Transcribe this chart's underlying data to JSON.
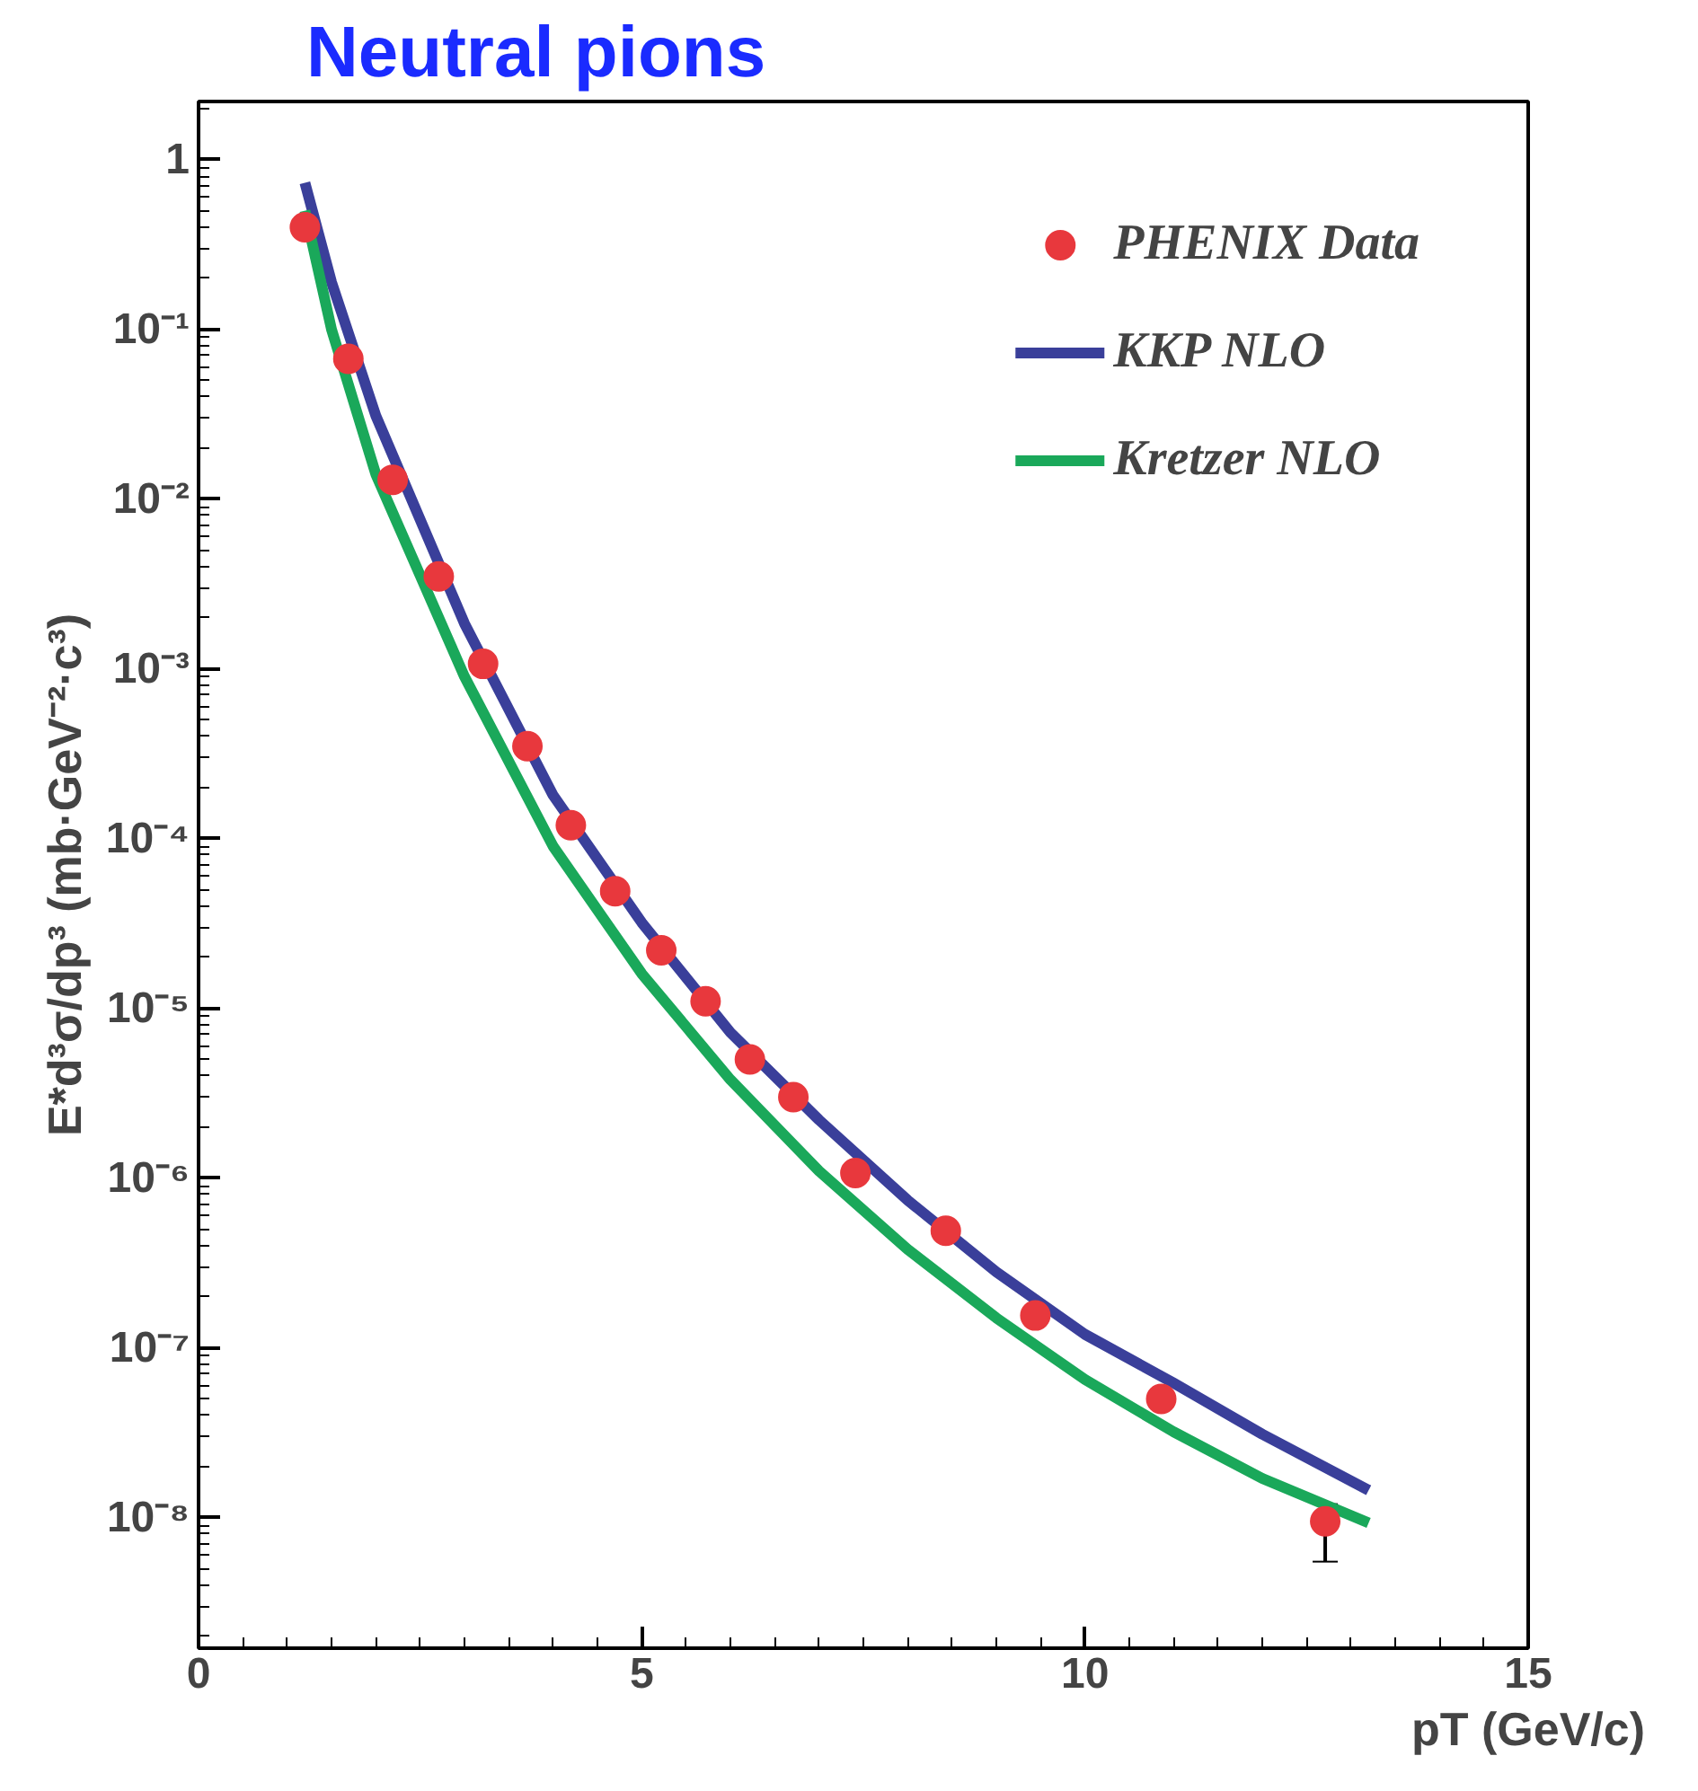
{
  "chart_data": {
    "type": "line",
    "title": "Neutral pions",
    "xlabel": "pT (GeV/c)",
    "ylabel": "E*d³σ/dp³ (mb·GeV⁻²·c³)",
    "log": "y",
    "grid": false,
    "legend": "top right",
    "xlim": [
      0,
      15
    ],
    "xticks": [
      0,
      5,
      10,
      15
    ],
    "ylim": [
      1.7e-09,
      2.2
    ],
    "yticks": [
      1,
      {
        "value": 0.1,
        "label": "10⁻¹"
      },
      {
        "value": 0.01,
        "label": "10⁻²"
      },
      {
        "value": 0.001,
        "label": "10⁻³"
      },
      {
        "value": 0.0001,
        "label": "10⁻⁴"
      },
      {
        "value": 1e-05,
        "label": "10⁻⁵"
      },
      {
        "value": 1e-06,
        "label": "10⁻⁶"
      },
      {
        "value": 1e-07,
        "label": "10⁻⁷"
      },
      {
        "value": 1e-08,
        "label": "10⁻⁸"
      }
    ],
    "series": [
      {
        "name": "KKP NLO",
        "color": "#3a3f9a",
        "x": [
          1.2,
          1.5,
          2,
          3,
          4,
          5,
          6,
          7,
          8,
          9,
          10,
          11,
          12,
          13.2
        ],
        "values": [
          0.73,
          0.19,
          0.031,
          0.00185,
          0.00018,
          3.2e-05,
          7.2e-06,
          2.2e-06,
          7.4e-07,
          2.8e-07,
          1.2e-07,
          6.2e-08,
          3.1e-08,
          1.45e-08
        ]
      },
      {
        "name": "Kretzer NLO",
        "color": "#1aa85a",
        "x": [
          1.2,
          1.5,
          2,
          3,
          4,
          5,
          6,
          7,
          8,
          9,
          10,
          11,
          12,
          13.2
        ],
        "values": [
          0.5,
          0.1,
          0.014,
          0.0009,
          9e-05,
          1.6e-05,
          3.8e-06,
          1.1e-06,
          3.8e-07,
          1.5e-07,
          6.5e-08,
          3.2e-08,
          1.7e-08,
          9.3e-09
        ]
      },
      {
        "name": "PHENIX Data",
        "type": "scatter",
        "marker": "circle",
        "color": "#e8383d",
        "x": [
          1.2,
          1.69,
          2.19,
          2.71,
          3.21,
          3.71,
          4.2,
          4.7,
          5.22,
          5.72,
          6.22,
          6.71,
          7.41,
          8.43,
          9.44,
          10.86,
          12.71
        ],
        "values": [
          0.4,
          0.067,
          0.013,
          0.0035,
          0.00107,
          0.00035,
          0.00012,
          4.9e-05,
          2.2e-05,
          1.1e-05,
          5e-06,
          3e-06,
          1.07e-06,
          4.9e-07,
          1.55e-07,
          5e-08,
          9.5e-09
        ],
        "errors": [
          null,
          null,
          null,
          null,
          null,
          null,
          null,
          null,
          null,
          null,
          null,
          null,
          null,
          null,
          null,
          null,
          [
            5.5e-09,
            1.2e-08
          ]
        ]
      }
    ]
  }
}
